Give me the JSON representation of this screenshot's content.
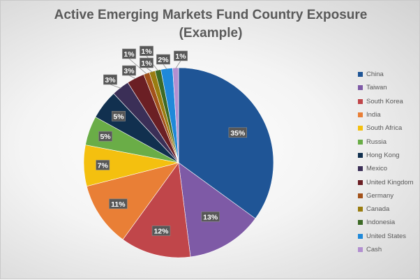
{
  "chart_data": {
    "type": "pie",
    "title_line1": "Active Emerging Markets Fund Country Exposure",
    "title_line2": "(Example)",
    "legend_position": "right",
    "categories": [
      "China",
      "Taiwan",
      "South Korea",
      "India",
      "South Africa",
      "Russia",
      "Hong Kong",
      "Mexico",
      "United Kingdom",
      "Germany",
      "Canada",
      "Indonesia",
      "United States",
      "Cash"
    ],
    "values": [
      35,
      13,
      12,
      11,
      7,
      5,
      5,
      3,
      3,
      1,
      1,
      1,
      2,
      1
    ],
    "data_labels": [
      "35%",
      "13%",
      "12%",
      "11%",
      "7%",
      "5%",
      "5%",
      "3%",
      "3%",
      "1%",
      "1%",
      "1%",
      "2%",
      "1%"
    ],
    "colors": [
      "#1f5596",
      "#7e5aa6",
      "#c0464a",
      "#e97f36",
      "#f4c00f",
      "#6aad47",
      "#11304f",
      "#3b2f57",
      "#6b1f24",
      "#a3521a",
      "#9a7d10",
      "#3d6a26",
      "#1f89d9",
      "#b28fd0"
    ]
  }
}
